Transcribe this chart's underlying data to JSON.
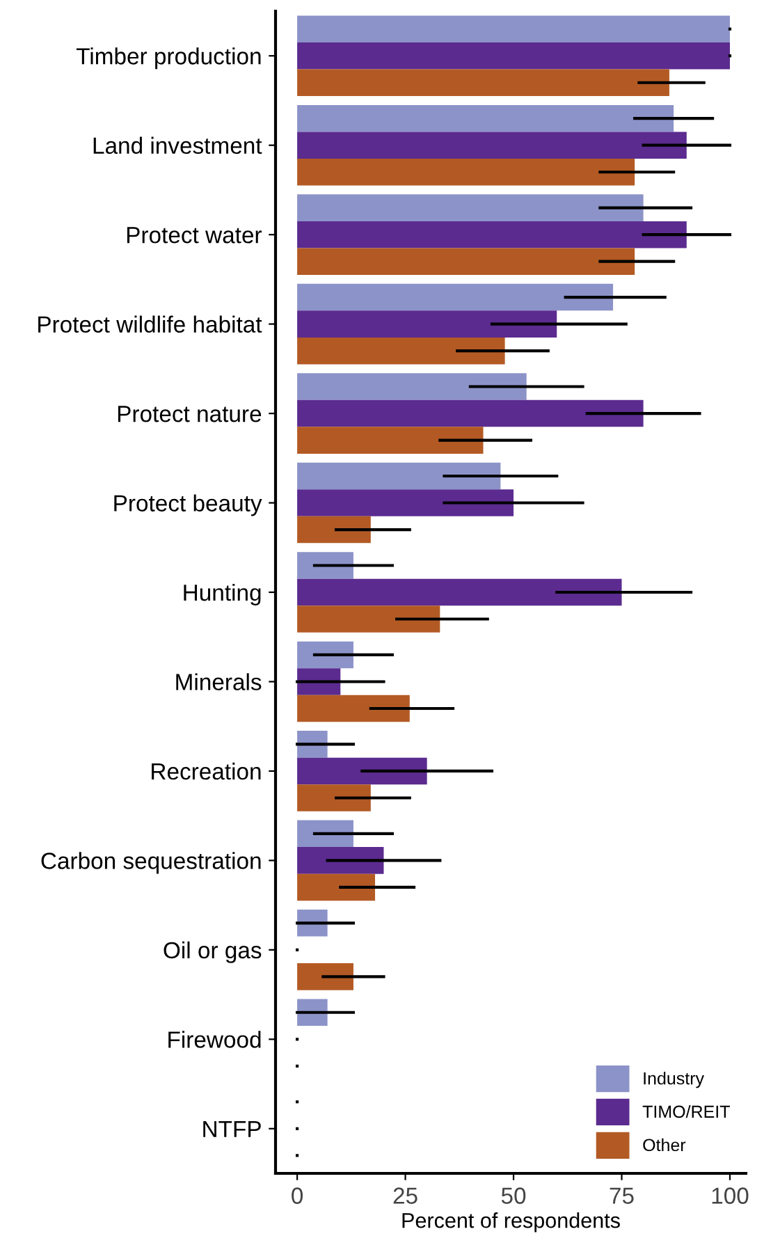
{
  "chart_data": {
    "type": "bar",
    "orientation": "horizontal",
    "xlabel": "Percent of respondents",
    "categories": [
      "Timber production",
      "Land investment",
      "Protect water",
      "Protect wildlife habitat",
      "Protect nature",
      "Protect beauty",
      "Hunting",
      "Minerals",
      "Recreation",
      "Carbon sequestration",
      "Oil or gas",
      "Firewood",
      "NTFP"
    ],
    "series": [
      {
        "name": "Industry",
        "color": "#8c93c8",
        "values": [
          100,
          87,
          80,
          73,
          53,
          47,
          13,
          13,
          7,
          13,
          7,
          7,
          0
        ],
        "errors": [
          [
            100,
            100
          ],
          [
            78,
            96
          ],
          [
            70,
            91
          ],
          [
            62,
            85
          ],
          [
            40,
            66
          ],
          [
            34,
            60
          ],
          [
            4,
            22
          ],
          [
            4,
            22
          ],
          [
            0,
            13
          ],
          [
            4,
            22
          ],
          [
            0,
            13
          ],
          [
            0,
            13
          ],
          [
            0,
            0
          ]
        ]
      },
      {
        "name": "TIMO/REIT",
        "color": "#5b2b8f",
        "values": [
          100,
          90,
          90,
          60,
          80,
          50,
          75,
          10,
          30,
          20,
          0,
          0,
          0
        ],
        "errors": [
          [
            100,
            100
          ],
          [
            80,
            100
          ],
          [
            80,
            100
          ],
          [
            45,
            76
          ],
          [
            67,
            93
          ],
          [
            34,
            66
          ],
          [
            60,
            91
          ],
          [
            0,
            20
          ],
          [
            15,
            45
          ],
          [
            7,
            33
          ],
          [
            0,
            0
          ],
          [
            0,
            0
          ],
          [
            0,
            0
          ]
        ]
      },
      {
        "name": "Other",
        "color": "#b35a24",
        "values": [
          86,
          78,
          78,
          48,
          43,
          17,
          33,
          26,
          17,
          18,
          13,
          0,
          0
        ],
        "errors": [
          [
            79,
            94
          ],
          [
            70,
            87
          ],
          [
            70,
            87
          ],
          [
            37,
            58
          ],
          [
            33,
            54
          ],
          [
            9,
            26
          ],
          [
            23,
            44
          ],
          [
            17,
            36
          ],
          [
            9,
            26
          ],
          [
            10,
            27
          ],
          [
            6,
            20
          ],
          [
            0,
            0
          ],
          [
            0,
            0
          ]
        ]
      }
    ],
    "xlim": [
      -5,
      103.7
    ],
    "xticks": [
      0,
      25,
      50,
      75,
      100
    ],
    "grid": false,
    "legend": "bottom right"
  }
}
